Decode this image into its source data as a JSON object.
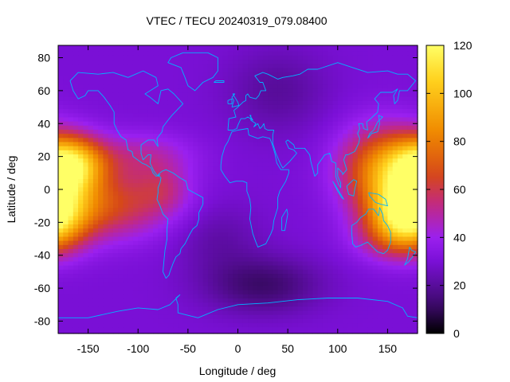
{
  "chart_data": {
    "type": "heatmap",
    "title": "VTEC / TECU 20240319_079.08400",
    "xlabel": "Longitude / deg",
    "ylabel": "Latitude / deg",
    "xlim": [
      -180,
      180
    ],
    "ylim": [
      -87.5,
      87.5
    ],
    "x_ticks": [
      -150,
      -100,
      -50,
      0,
      50,
      100,
      150
    ],
    "y_ticks": [
      -80,
      -60,
      -40,
      -20,
      0,
      20,
      40,
      60,
      80
    ],
    "x_tick_labels": [
      "-150",
      "-100",
      "-50",
      "0",
      "50",
      "100",
      "150"
    ],
    "y_tick_labels": [
      "-80",
      "-60",
      "-40",
      "-20",
      "0",
      "20",
      "40",
      "60",
      "80"
    ],
    "colorbar": {
      "min": 0,
      "max": 120,
      "ticks": [
        0,
        20,
        40,
        60,
        80,
        100,
        120
      ],
      "tick_labels": [
        "0",
        "20",
        "40",
        "60",
        "80",
        "100",
        "120"
      ],
      "palette": [
        "#000000",
        "#3d0a6b",
        "#7a10d6",
        "#9a20f0",
        "#c22a80",
        "#d64818",
        "#f08a00",
        "#ffd21e",
        "#ffff66"
      ],
      "palette_stops": [
        0,
        0.1,
        0.25,
        0.33,
        0.45,
        0.55,
        0.7,
        0.88,
        1.0
      ]
    },
    "grid": false,
    "legend": "none",
    "overlay": "coastlines",
    "features": [
      {
        "lon": -170,
        "lat": 15,
        "sigma_lon": 25,
        "sigma_lat": 12,
        "amp": 80
      },
      {
        "lon": -135,
        "lat": -10,
        "sigma_lon": 45,
        "sigma_lat": 14,
        "amp": 35
      },
      {
        "lon": -95,
        "lat": 20,
        "sigma_lon": 35,
        "sigma_lat": 10,
        "amp": 18
      },
      {
        "lon": -75,
        "lat": 0,
        "sigma_lon": 20,
        "sigma_lat": 10,
        "amp": 15
      },
      {
        "lon": 170,
        "lat": -15,
        "sigma_lon": 25,
        "sigma_lat": 14,
        "amp": 80
      },
      {
        "lon": 145,
        "lat": 12,
        "sigma_lon": 30,
        "sigma_lat": 18,
        "amp": 50
      },
      {
        "lon": 155,
        "lat": -30,
        "sigma_lon": 30,
        "sigma_lat": 10,
        "amp": 15
      },
      {
        "lon": 25,
        "lat": -58,
        "sigma_lon": 40,
        "sigma_lat": 12,
        "amp": -18
      },
      {
        "lon": 40,
        "lat": 60,
        "sigma_lon": 35,
        "sigma_lat": 18,
        "amp": -10
      },
      {
        "lon": -20,
        "lat": -30,
        "sigma_lon": 30,
        "sigma_lat": 15,
        "amp": -8
      }
    ],
    "background_value": 30
  }
}
